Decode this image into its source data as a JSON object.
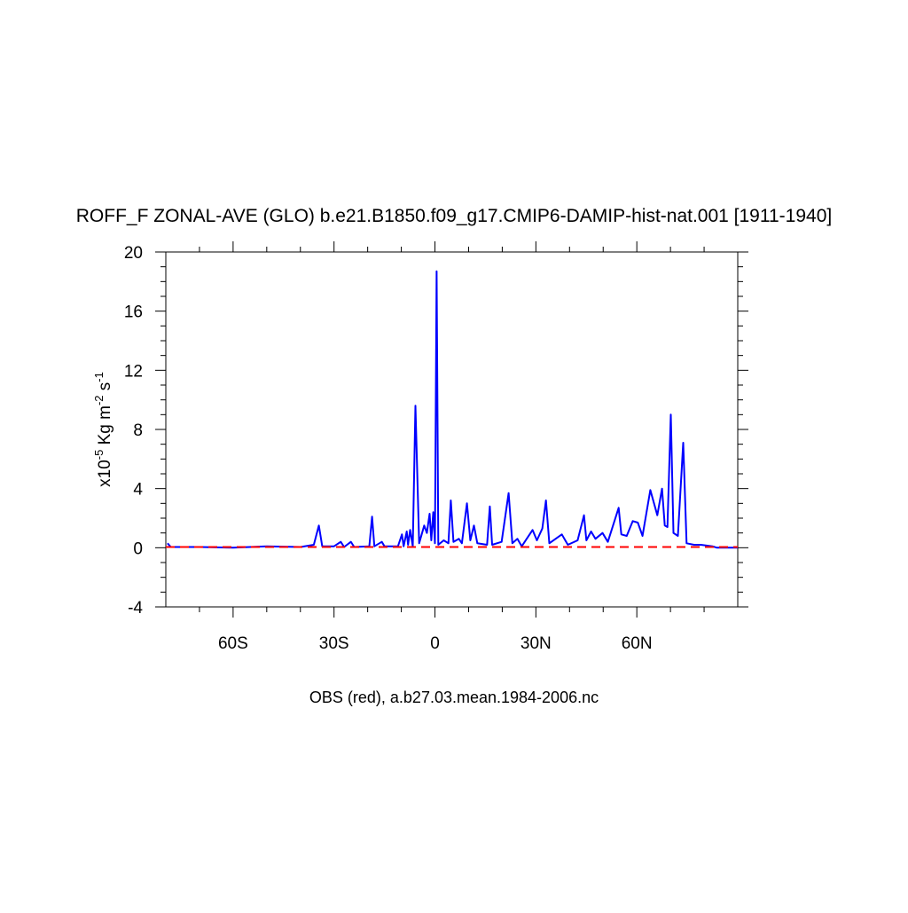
{
  "chart_data": {
    "type": "line",
    "title": "ROFF_F ZONAL-AVE (GLO) b.e21.B1850.f09_g17.CMIP6-DAMIP-hist-nat.001 [1911-1940]",
    "ylabel": [
      "x10",
      "-5",
      " Kg m",
      "-2",
      " s",
      "-1"
    ],
    "xlabel": "OBS (red), a.b27.03.mean.1984-2006.nc",
    "xlim": [
      -80,
      90
    ],
    "ylim": [
      -4,
      20
    ],
    "xticks": [
      {
        "value": -60,
        "label": "60S"
      },
      {
        "value": -30,
        "label": "30S"
      },
      0,
      {
        "value": 30,
        "label": "30N"
      },
      {
        "value": 60,
        "label": "60N"
      }
    ],
    "xminorticks": [
      -70,
      -50,
      -40,
      -20,
      -10,
      10,
      20,
      40,
      50,
      70,
      80
    ],
    "yticks": [
      -4,
      0,
      4,
      8,
      12,
      16,
      20
    ],
    "yminorticks": [
      -3,
      -2,
      -1,
      1,
      2,
      3,
      5,
      6,
      7,
      9,
      10,
      11,
      13,
      14,
      15,
      17,
      18,
      19
    ],
    "series": [
      {
        "color": "#0000ff",
        "dash": false,
        "x": [
          -79.5,
          -78.5,
          -70,
          -60,
          -50,
          -40,
          -36,
          -34.5,
          -33.5,
          -30,
          -28,
          -27,
          -25,
          -24,
          -19.5,
          -18.7,
          -18,
          -15.8,
          -15,
          -11,
          -9.8,
          -9.3,
          -8.4,
          -8,
          -7.4,
          -6.6,
          -5.8,
          -4.7,
          -3.2,
          -2.4,
          -1.6,
          -1.1,
          -0.5,
          0,
          0.5,
          1,
          2.6,
          4,
          4.7,
          5.5,
          7.1,
          8,
          9.5,
          10.5,
          11.6,
          12.6,
          15.5,
          16.3,
          17,
          19.8,
          21.9,
          23,
          24.5,
          25.8,
          29,
          30.3,
          31.9,
          33,
          34,
          37.7,
          39.5,
          42.4,
          44.3,
          45,
          46.4,
          47.7,
          49.8,
          51.4,
          54.6,
          55.4,
          57,
          58.8,
          60.3,
          61.7,
          64,
          66.1,
          67.5,
          68.3,
          69.1,
          70.1,
          70.9,
          72.2,
          73.8,
          74.8,
          77,
          79,
          82.5,
          83.8,
          90
        ],
        "values": [
          0.3,
          0.05,
          0.05,
          0.0,
          0.1,
          0.05,
          0.2,
          1.5,
          0.1,
          0.1,
          0.4,
          0.05,
          0.4,
          0.05,
          0.1,
          2.1,
          0.1,
          0.4,
          0.1,
          0.1,
          0.9,
          0.1,
          1.1,
          0.2,
          1.2,
          0.1,
          9.6,
          0.3,
          1.5,
          1.0,
          2.3,
          0.5,
          2.4,
          0.3,
          18.7,
          0.2,
          0.5,
          0.3,
          3.2,
          0.4,
          0.6,
          0.3,
          3.0,
          0.5,
          1.5,
          0.3,
          0.2,
          2.8,
          0.2,
          0.4,
          3.7,
          0.3,
          0.6,
          0.1,
          1.2,
          0.5,
          1.3,
          3.2,
          0.3,
          0.9,
          0.2,
          0.5,
          2.2,
          0.5,
          1.1,
          0.6,
          1.0,
          0.4,
          2.7,
          0.9,
          0.8,
          1.8,
          1.7,
          0.8,
          3.9,
          2.2,
          4.0,
          1.5,
          1.4,
          9.0,
          1.0,
          0.8,
          7.1,
          0.3,
          0.2,
          0.2,
          0.1,
          0.0,
          0.0
        ]
      },
      {
        "color": "#ff0000",
        "dash": true,
        "x": [
          -80,
          90
        ],
        "values": [
          0.05,
          0.05
        ]
      }
    ]
  }
}
